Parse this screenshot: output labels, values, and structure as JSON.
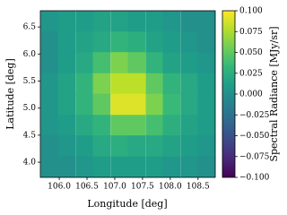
{
  "chart_data": {
    "type": "heatmap",
    "xlabel": "Longitude [deg]",
    "ylabel": "Latitude [deg]",
    "colorbar_label": "Spectral Radiance [MJy/sr]",
    "colormap": "viridis",
    "xlim": [
      105.66,
      108.81
    ],
    "ylim": [
      3.72,
      6.8
    ],
    "xticks": [
      {
        "value": 106.0,
        "label": "106.0"
      },
      {
        "value": 106.5,
        "label": "106.5"
      },
      {
        "value": 107.0,
        "label": "107.0"
      },
      {
        "value": 107.5,
        "label": "107.5"
      },
      {
        "value": 108.0,
        "label": "108.0"
      },
      {
        "value": 108.5,
        "label": "108.5"
      }
    ],
    "yticks": [
      {
        "value": 4.0,
        "label": "4.0"
      },
      {
        "value": 4.5,
        "label": "4.5"
      },
      {
        "value": 5.0,
        "label": "5.0"
      },
      {
        "value": 5.5,
        "label": "5.5"
      },
      {
        "value": 6.0,
        "label": "6.0"
      },
      {
        "value": 6.5,
        "label": "6.5"
      }
    ],
    "clim": [
      -0.1,
      0.1
    ],
    "cticks": [
      {
        "value": -0.1,
        "label": "−0.100"
      },
      {
        "value": -0.075,
        "label": "−0.075"
      },
      {
        "value": -0.05,
        "label": "−0.050"
      },
      {
        "value": -0.025,
        "label": "−0.025"
      },
      {
        "value": 0.0,
        "label": "0.000"
      },
      {
        "value": 0.025,
        "label": "0.025"
      },
      {
        "value": 0.05,
        "label": "0.050"
      },
      {
        "value": 0.075,
        "label": "0.075"
      },
      {
        "value": 0.1,
        "label": "0.100"
      }
    ],
    "x": [
      105.82,
      106.13,
      106.45,
      106.76,
      107.08,
      107.39,
      107.71,
      108.02,
      108.34,
      108.65
    ],
    "y": [
      6.61,
      6.22,
      5.84,
      5.45,
      5.07,
      4.68,
      4.3,
      3.91
    ],
    "z": [
      [
        0.005,
        0.01,
        0.01,
        0.015,
        0.015,
        0.01,
        0.01,
        0.005,
        0.0,
        0.0
      ],
      [
        0.0,
        0.01,
        0.015,
        0.02,
        0.03,
        0.025,
        0.015,
        0.01,
        0.005,
        0.0
      ],
      [
        0.0,
        0.01,
        0.02,
        0.04,
        0.06,
        0.05,
        0.03,
        0.015,
        0.01,
        0.005
      ],
      [
        0.005,
        0.015,
        0.03,
        0.06,
        0.08,
        0.08,
        0.05,
        0.03,
        0.02,
        0.01
      ],
      [
        0.005,
        0.015,
        0.03,
        0.05,
        0.09,
        0.09,
        0.06,
        0.035,
        0.02,
        0.01
      ],
      [
        0.005,
        0.01,
        0.02,
        0.03,
        0.05,
        0.05,
        0.04,
        0.025,
        0.015,
        0.01
      ],
      [
        0.0,
        0.005,
        0.01,
        0.02,
        0.025,
        0.02,
        0.02,
        0.015,
        0.01,
        0.005
      ],
      [
        0.0,
        0.0,
        0.005,
        0.01,
        0.01,
        0.01,
        0.01,
        0.005,
        0.005,
        0.0
      ]
    ]
  }
}
